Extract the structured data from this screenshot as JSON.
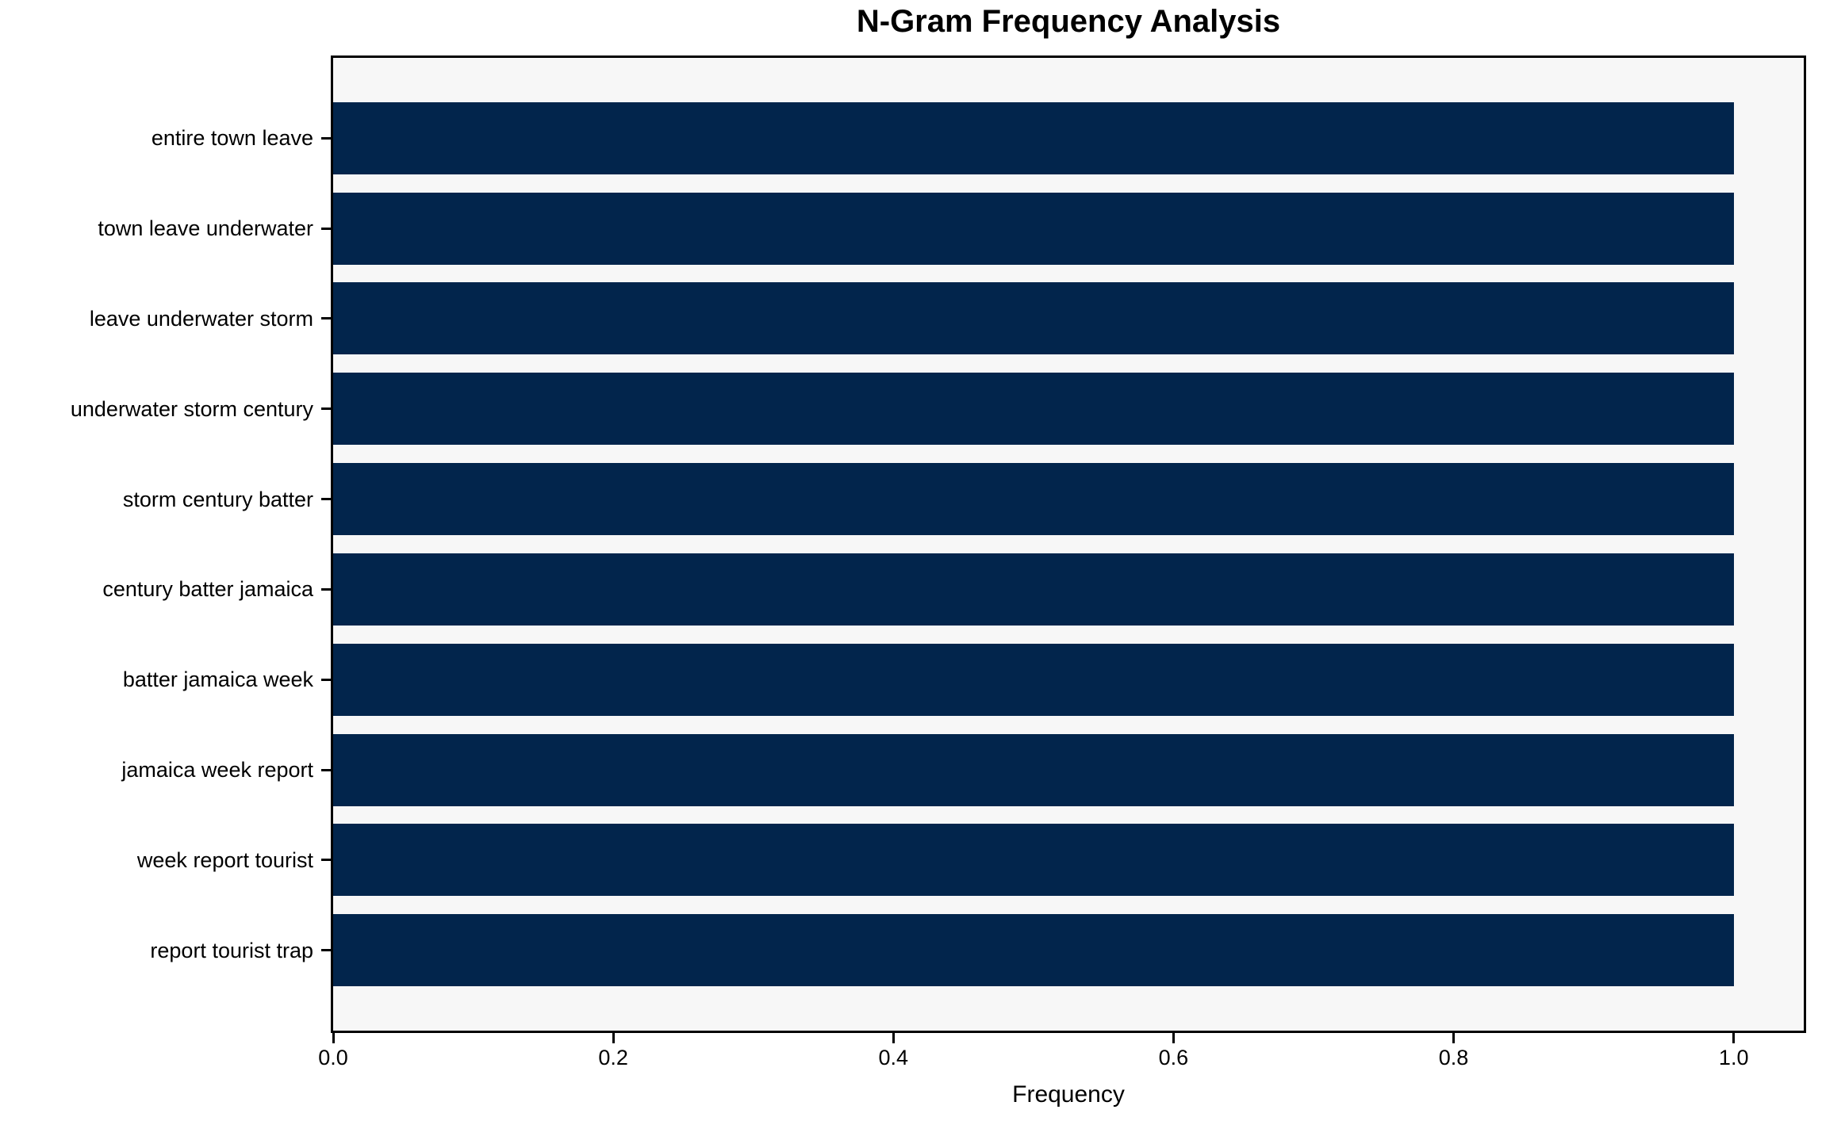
{
  "title": "N-Gram Frequency Analysis",
  "chart_data": {
    "type": "bar",
    "orientation": "horizontal",
    "title": "N-Gram Frequency Analysis",
    "xlabel": "Frequency",
    "ylabel": "",
    "categories": [
      "entire town leave",
      "town leave underwater",
      "leave underwater storm",
      "underwater storm century",
      "storm century batter",
      "century batter jamaica",
      "batter jamaica week",
      "jamaica week report",
      "week report tourist",
      "report tourist trap"
    ],
    "values": [
      1.0,
      1.0,
      1.0,
      1.0,
      1.0,
      1.0,
      1.0,
      1.0,
      1.0,
      1.0
    ],
    "xlim": [
      0,
      1.05
    ],
    "x_ticks": [
      0.0,
      0.2,
      0.4,
      0.6,
      0.8,
      1.0
    ],
    "x_tick_labels": [
      "0.0",
      "0.2",
      "0.4",
      "0.6",
      "0.8",
      "1.0"
    ],
    "grid": false,
    "legend": null,
    "bar_fraction": 0.8,
    "colors": {
      "bar": "#02254c",
      "plot_background": "#f7f7f7",
      "figure_background": "#ffffff",
      "spine": "#000000",
      "text": "#000000"
    }
  }
}
